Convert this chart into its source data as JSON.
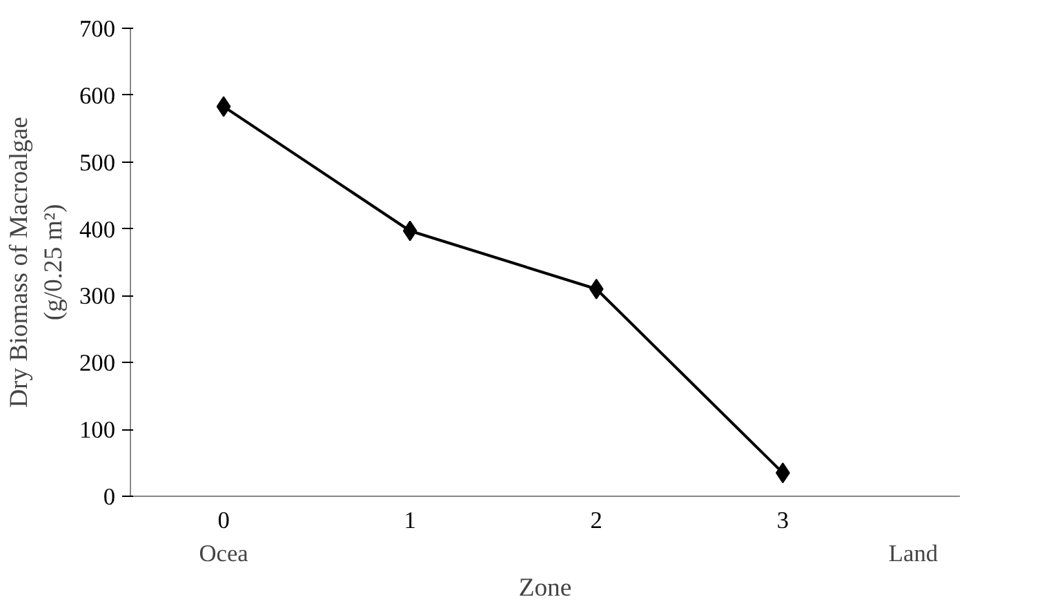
{
  "chart_data": {
    "type": "line",
    "xlabel": "Zone",
    "ylabel": "Dry Biomass of Macroalgae\n(g/0.25 m²)",
    "categories": [
      "0",
      "1",
      "2",
      "3"
    ],
    "series": [
      {
        "color": "#000000",
        "values": [
          583,
          397,
          310,
          35
        ]
      }
    ],
    "ylim": [
      0,
      700
    ],
    "yticks": [
      0,
      100,
      200,
      300,
      400,
      500,
      600,
      700
    ],
    "marker": "diamond",
    "line_style": "solid",
    "grid": false,
    "annotations": [
      "Ocea",
      "Land"
    ]
  }
}
